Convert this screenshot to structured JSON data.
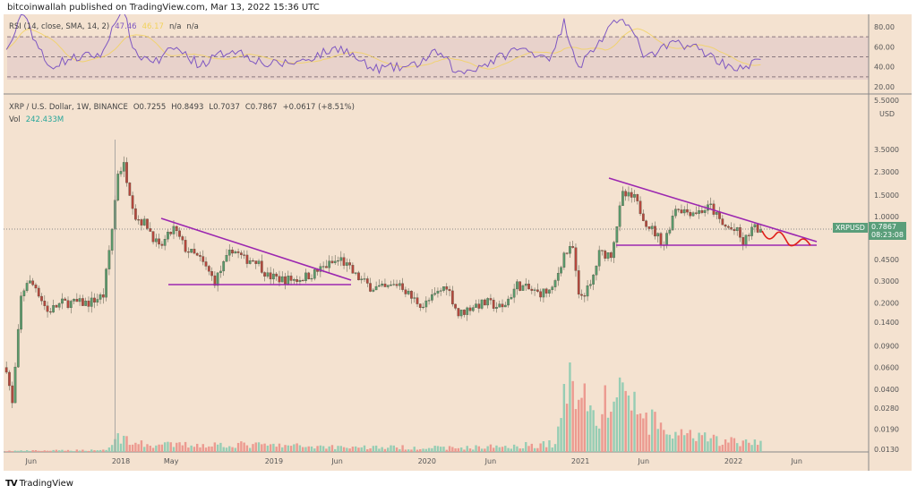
{
  "header": {
    "published": "bitcoinwallah published on TradingView.com, Mar 13, 2022 15:36 UTC"
  },
  "rsi_legend": {
    "label": "RSI (14, close, SMA, 14, 2)",
    "rsi": "47.46",
    "sma": "46.17",
    "n1": "n/a",
    "n2": "n/a"
  },
  "price_legend": {
    "symbol": "XRP / U.S. Dollar, 1W, BINANCE",
    "o": "O0.7255",
    "h": "H0.8493",
    "l": "L0.7037",
    "c": "C0.7867",
    "chg": "+0.0617 (+8.51%)",
    "vol_label": "Vol",
    "vol": "242.433M"
  },
  "price_tag": {
    "symbol": "XRPUSD",
    "price": "0.7867",
    "countdown": "08:23:08"
  },
  "footer": {
    "brand": "TradingView"
  },
  "colors": {
    "up": "#5a9a6c",
    "down": "#b5473d",
    "vol_up": "#96cdb4",
    "vol_down": "#ec9a90",
    "rsi": "#7e57c2",
    "sma": "#f2d25a",
    "trend": "#9c27b0",
    "projection": "#e0201b",
    "bg": "#f4e2d0"
  },
  "chart_data": {
    "type": "candlestick",
    "title": "XRP / U.S. Dollar, 1W, BINANCE",
    "y_scale": "log",
    "y_ticks": [
      "5.5000",
      "3.5000",
      "2.3000",
      "1.5000",
      "1.0000",
      "0.4500",
      "0.3000",
      "0.2000",
      "0.1400",
      "0.0900",
      "0.0600",
      "0.0400",
      "0.0280",
      "0.0190",
      "0.0130"
    ],
    "y_unit": "USD",
    "x_ticks": [
      [
        "Jun",
        "2017-06-01"
      ],
      [
        "2018",
        "2018-01-01"
      ],
      [
        "May",
        "2018-05-01"
      ],
      [
        "2019",
        "2019-01-01"
      ],
      [
        "Jun",
        "2019-06-01"
      ],
      [
        "2020",
        "2020-01-01"
      ],
      [
        "Jun",
        "2020-06-01"
      ],
      [
        "2021",
        "2021-01-01"
      ],
      [
        "Jun",
        "2021-06-01"
      ],
      [
        "2022",
        "2022-01-01"
      ],
      [
        "Jun",
        "2022-06-01"
      ]
    ],
    "close_keypoints": [
      [
        "2017-04-03",
        0.06
      ],
      [
        "2017-04-17",
        0.03
      ],
      [
        "2017-05-08",
        0.22
      ],
      [
        "2017-05-22",
        0.3
      ],
      [
        "2017-06-12",
        0.27
      ],
      [
        "2017-07-10",
        0.17
      ],
      [
        "2017-08-14",
        0.2
      ],
      [
        "2017-09-18",
        0.2
      ],
      [
        "2017-10-16",
        0.2
      ],
      [
        "2017-11-20",
        0.23
      ],
      [
        "2017-12-11",
        0.8
      ],
      [
        "2017-12-25",
        2.3
      ],
      [
        "2018-01-08",
        2.6
      ],
      [
        "2018-02-05",
        1.0
      ],
      [
        "2018-03-05",
        0.85
      ],
      [
        "2018-04-02",
        0.55
      ],
      [
        "2018-05-07",
        0.8
      ],
      [
        "2018-06-04",
        0.55
      ],
      [
        "2018-07-09",
        0.45
      ],
      [
        "2018-08-13",
        0.3
      ],
      [
        "2018-09-24",
        0.55
      ],
      [
        "2018-10-22",
        0.45
      ],
      [
        "2018-11-19",
        0.45
      ],
      [
        "2018-12-17",
        0.33
      ],
      [
        "2019-01-21",
        0.31
      ],
      [
        "2019-02-25",
        0.31
      ],
      [
        "2019-04-01",
        0.34
      ],
      [
        "2019-05-06",
        0.4
      ],
      [
        "2019-06-10",
        0.45
      ],
      [
        "2019-07-15",
        0.33
      ],
      [
        "2019-08-19",
        0.27
      ],
      [
        "2019-09-23",
        0.26
      ],
      [
        "2019-10-28",
        0.29
      ],
      [
        "2019-11-25",
        0.22
      ],
      [
        "2019-12-23",
        0.19
      ],
      [
        "2020-01-27",
        0.24
      ],
      [
        "2020-02-17",
        0.28
      ],
      [
        "2020-03-16",
        0.16
      ],
      [
        "2020-04-20",
        0.19
      ],
      [
        "2020-05-25",
        0.2
      ],
      [
        "2020-06-29",
        0.18
      ],
      [
        "2020-08-03",
        0.28
      ],
      [
        "2020-09-21",
        0.24
      ],
      [
        "2020-10-26",
        0.25
      ],
      [
        "2020-11-23",
        0.5
      ],
      [
        "2020-12-14",
        0.55
      ],
      [
        "2020-12-28",
        0.22
      ],
      [
        "2021-01-25",
        0.27
      ],
      [
        "2021-02-15",
        0.5
      ],
      [
        "2021-03-15",
        0.5
      ],
      [
        "2021-04-12",
        1.5
      ],
      [
        "2021-05-10",
        1.4
      ],
      [
        "2021-06-07",
        0.9
      ],
      [
        "2021-07-19",
        0.6
      ],
      [
        "2021-08-16",
        1.2
      ],
      [
        "2021-09-13",
        1.1
      ],
      [
        "2021-10-11",
        1.1
      ],
      [
        "2021-11-08",
        1.2
      ],
      [
        "2021-12-06",
        0.85
      ],
      [
        "2022-01-10",
        0.75
      ],
      [
        "2022-01-24",
        0.6
      ],
      [
        "2022-02-14",
        0.8
      ],
      [
        "2022-03-07",
        0.7867
      ]
    ],
    "volume_keypoints_M": [
      [
        "2017-04-03",
        30
      ],
      [
        "2017-11-20",
        60
      ],
      [
        "2017-12-25",
        450
      ],
      [
        "2018-01-15",
        380
      ],
      [
        "2018-03-01",
        200
      ],
      [
        "2018-09-24",
        220
      ],
      [
        "2019-06-10",
        150
      ],
      [
        "2020-03-16",
        120
      ],
      [
        "2020-11-01",
        250
      ],
      [
        "2020-11-23",
        1800
      ],
      [
        "2020-12-28",
        2500
      ],
      [
        "2021-02-01",
        1000
      ],
      [
        "2021-04-12",
        2000
      ],
      [
        "2021-05-24",
        1100
      ],
      [
        "2021-08-16",
        500
      ],
      [
        "2022-03-07",
        240
      ]
    ],
    "rsi_keypoints": [
      [
        "2017-04-03",
        55
      ],
      [
        "2017-05-15",
        95
      ],
      [
        "2017-06-05",
        72
      ],
      [
        "2017-07-10",
        40
      ],
      [
        "2017-09-01",
        48
      ],
      [
        "2017-11-20",
        53
      ],
      [
        "2017-12-18",
        88
      ],
      [
        "2018-01-08",
        95
      ],
      [
        "2018-02-05",
        52
      ],
      [
        "2018-04-02",
        45
      ],
      [
        "2018-05-07",
        60
      ],
      [
        "2018-07-09",
        42
      ],
      [
        "2018-09-24",
        58
      ],
      [
        "2018-12-17",
        42
      ],
      [
        "2019-03-01",
        45
      ],
      [
        "2019-06-10",
        60
      ],
      [
        "2019-08-19",
        38
      ],
      [
        "2019-11-25",
        40
      ],
      [
        "2020-01-27",
        55
      ],
      [
        "2020-03-16",
        33
      ],
      [
        "2020-06-01",
        45
      ],
      [
        "2020-08-03",
        58
      ],
      [
        "2020-10-26",
        50
      ],
      [
        "2020-11-23",
        85
      ],
      [
        "2020-12-28",
        40
      ],
      [
        "2021-02-15",
        65
      ],
      [
        "2021-04-12",
        92
      ],
      [
        "2021-06-07",
        48
      ],
      [
        "2021-08-16",
        65
      ],
      [
        "2021-10-11",
        58
      ],
      [
        "2021-12-06",
        44
      ],
      [
        "2022-01-24",
        37
      ],
      [
        "2022-03-07",
        47.46
      ]
    ],
    "rsi_ticks": [
      "80.00",
      "60.00",
      "40.00",
      "20.00"
    ],
    "rsi_bands": [
      70,
      50,
      30
    ]
  }
}
